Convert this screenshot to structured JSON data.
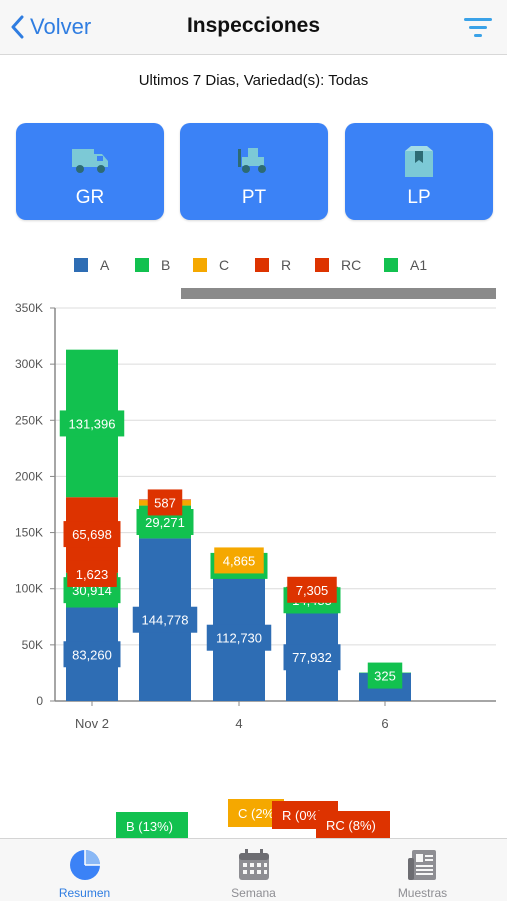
{
  "nav": {
    "back_label": "Volver",
    "title": "Inspecciones"
  },
  "subtitle": "Ultimos 7 Dias, Variedad(s): Todas",
  "categories": [
    {
      "label": "GR",
      "icon": "truck-icon"
    },
    {
      "label": "PT",
      "icon": "forklift-icon"
    },
    {
      "label": "LP",
      "icon": "box-icon"
    }
  ],
  "colors": {
    "accent": "#3b82f6",
    "A": "#2e6db4",
    "B": "#12c14f",
    "C": "#f5a800",
    "R": "#dd3300",
    "RC": "#dd3300",
    "A1": "#12c14f"
  },
  "legend": [
    "A",
    "B",
    "C",
    "R",
    "RC",
    "A1"
  ],
  "chart_data": {
    "type": "bar",
    "stacked": true,
    "x_tick_labels": [
      "Nov 2",
      "4",
      "6"
    ],
    "y_tick_labels": [
      "0",
      "50K",
      "100K",
      "150K",
      "200K",
      "250K",
      "300K",
      "350K"
    ],
    "ylim": [
      0,
      350000
    ],
    "grid": true,
    "legend_position": "top",
    "bars": [
      {
        "segments": [
          {
            "series": "A",
            "value": 83260,
            "label": "83,260"
          },
          {
            "series": "B",
            "value": 30914,
            "label": "30,914"
          },
          {
            "series": "R",
            "value": 1623,
            "label": "1,623"
          },
          {
            "series": "RC",
            "value": 65698,
            "label": "65,698"
          },
          {
            "series": "A1",
            "value": 131396,
            "label": "131,396"
          }
        ]
      },
      {
        "segments": [
          {
            "series": "A",
            "value": 144778,
            "label": "144,778"
          },
          {
            "series": "B",
            "value": 29271,
            "label": "29,271"
          },
          {
            "series": "C",
            "value": 4865,
            "label": ""
          },
          {
            "series": "R",
            "value": 587,
            "label": "587"
          }
        ]
      },
      {
        "segments": [
          {
            "series": "A",
            "value": 112730,
            "label": "112,730"
          },
          {
            "series": "B",
            "value": 10262,
            "label": "10,262"
          },
          {
            "series": "C",
            "value": 4865,
            "label": "4,865"
          }
        ]
      },
      {
        "segments": [
          {
            "series": "A",
            "value": 77932,
            "label": "77,932"
          },
          {
            "series": "B",
            "value": 14485,
            "label": "14,485"
          },
          {
            "series": "C",
            "value": 2000,
            "label": ""
          },
          {
            "series": "R",
            "value": 7305,
            "label": "7,305"
          }
        ]
      },
      {
        "segments": [
          {
            "series": "A",
            "value": 25000,
            "label": ""
          },
          {
            "series": "B",
            "value": 325,
            "label": "325"
          }
        ]
      }
    ]
  },
  "pie_labels": [
    {
      "text": "B (13%)",
      "color": "#12c14f"
    },
    {
      "text": "C (2%)",
      "color": "#f5a800"
    },
    {
      "text": "R (0%)",
      "color": "#dd3300"
    },
    {
      "text": "RC (8%)",
      "color": "#dd3300"
    }
  ],
  "tabs": [
    {
      "label": "Resumen",
      "icon": "pie-chart-icon",
      "active": true
    },
    {
      "label": "Semana",
      "icon": "calendar-icon",
      "active": false
    },
    {
      "label": "Muestras",
      "icon": "newspaper-icon",
      "active": false
    }
  ]
}
